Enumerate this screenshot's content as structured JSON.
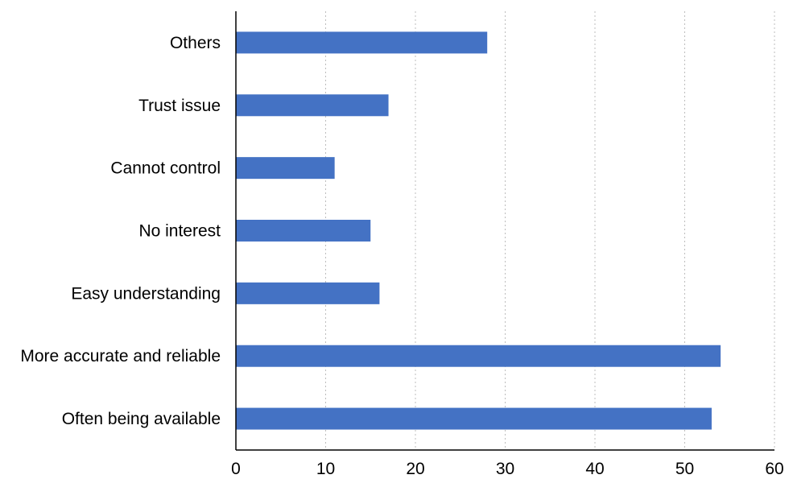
{
  "chart_data": {
    "type": "bar",
    "orientation": "horizontal",
    "categories": [
      "Others",
      "Trust issue",
      "Cannot control",
      "No interest",
      "Easy understanding",
      "More accurate and reliable",
      "Often being available"
    ],
    "series": [
      {
        "values": [
          28,
          17,
          11,
          15,
          16,
          54,
          53
        ]
      }
    ],
    "x_ticks": [
      "0",
      "10",
      "20",
      "30",
      "40",
      "50",
      "60"
    ],
    "xlim": [
      0,
      60
    ],
    "title": "",
    "xlabel": "",
    "ylabel": "",
    "grid": "vertical dotted",
    "legend": "none",
    "colors": {
      "bar": "#4472c4",
      "grid": "#bdbdbd",
      "axis": "#000000"
    }
  }
}
